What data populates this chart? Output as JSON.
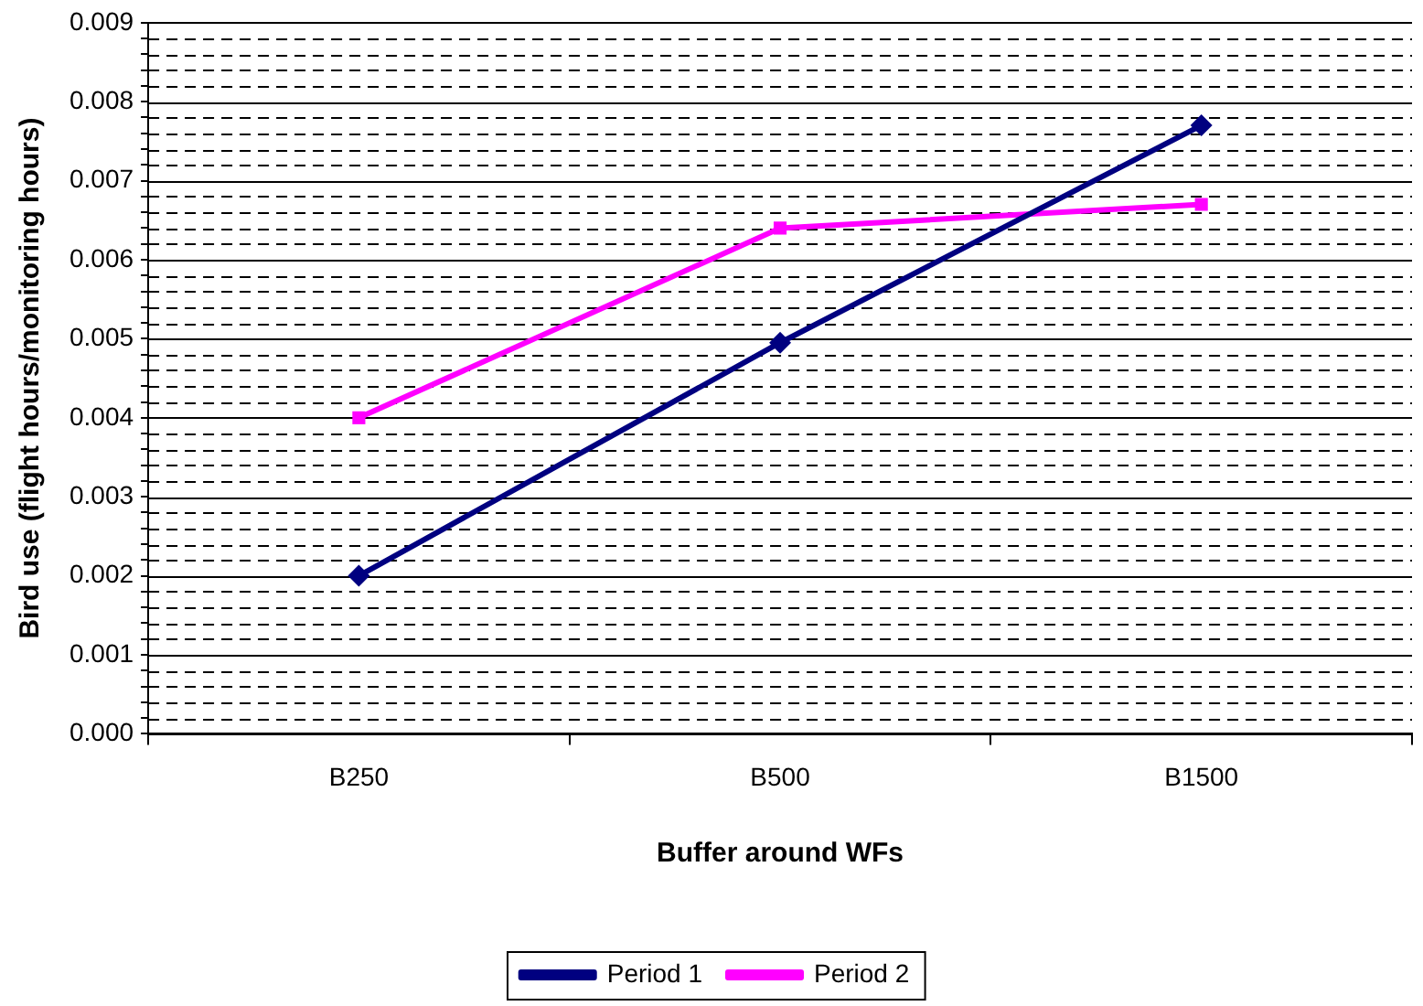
{
  "chart_data": {
    "type": "line",
    "xlabel": "Buffer around WFs",
    "ylabel": "Bird use (flight hours/monitoring hours)",
    "categories": [
      "B250",
      "B500",
      "B1500"
    ],
    "series": [
      {
        "name": "Period 1",
        "color": "#000080",
        "marker": "diamond",
        "values": [
          0.002,
          0.00495,
          0.0077
        ]
      },
      {
        "name": "Period 2",
        "color": "#ff00ff",
        "marker": "square",
        "values": [
          0.004,
          0.0064,
          0.0067
        ]
      }
    ],
    "ylim": [
      0,
      0.009
    ],
    "yticks": [
      {
        "value": 0,
        "label": "0.000"
      },
      {
        "value": 0.0002,
        "label": null
      },
      {
        "value": 0.0004,
        "label": null
      },
      {
        "value": 0.0006,
        "label": null
      },
      {
        "value": 0.0008,
        "label": null
      },
      {
        "value": 0.001,
        "label": "0.001"
      },
      {
        "value": 0.0012,
        "label": null
      },
      {
        "value": 0.0014,
        "label": null
      },
      {
        "value": 0.0016,
        "label": null
      },
      {
        "value": 0.0018,
        "label": null
      },
      {
        "value": 0.002,
        "label": "0.002"
      },
      {
        "value": 0.0022,
        "label": null
      },
      {
        "value": 0.0024,
        "label": null
      },
      {
        "value": 0.0026,
        "label": null
      },
      {
        "value": 0.0028,
        "label": null
      },
      {
        "value": 0.003,
        "label": "0.003"
      },
      {
        "value": 0.0032,
        "label": null
      },
      {
        "value": 0.0034,
        "label": null
      },
      {
        "value": 0.0036,
        "label": null
      },
      {
        "value": 0.0038,
        "label": null
      },
      {
        "value": 0.004,
        "label": "0.004"
      },
      {
        "value": 0.0042,
        "label": null
      },
      {
        "value": 0.0044,
        "label": null
      },
      {
        "value": 0.0046,
        "label": null
      },
      {
        "value": 0.0048,
        "label": null
      },
      {
        "value": 0.005,
        "label": "0.005"
      },
      {
        "value": 0.0052,
        "label": null
      },
      {
        "value": 0.0054,
        "label": null
      },
      {
        "value": 0.0056,
        "label": null
      },
      {
        "value": 0.0058,
        "label": null
      },
      {
        "value": 0.006,
        "label": "0.006"
      },
      {
        "value": 0.0062,
        "label": null
      },
      {
        "value": 0.0064,
        "label": null
      },
      {
        "value": 0.0066,
        "label": null
      },
      {
        "value": 0.0068,
        "label": null
      },
      {
        "value": 0.007,
        "label": "0.007"
      },
      {
        "value": 0.0072,
        "label": null
      },
      {
        "value": 0.0074,
        "label": null
      },
      {
        "value": 0.0076,
        "label": null
      },
      {
        "value": 0.0078,
        "label": null
      },
      {
        "value": 0.008,
        "label": "0.008"
      },
      {
        "value": 0.0082,
        "label": null
      },
      {
        "value": 0.0084,
        "label": null
      },
      {
        "value": 0.0086,
        "label": null
      },
      {
        "value": 0.0088,
        "label": null
      },
      {
        "value": 0.009,
        "label": "0.009"
      }
    ],
    "grid": "y",
    "legend": "bottom",
    "line_style": "solid"
  }
}
